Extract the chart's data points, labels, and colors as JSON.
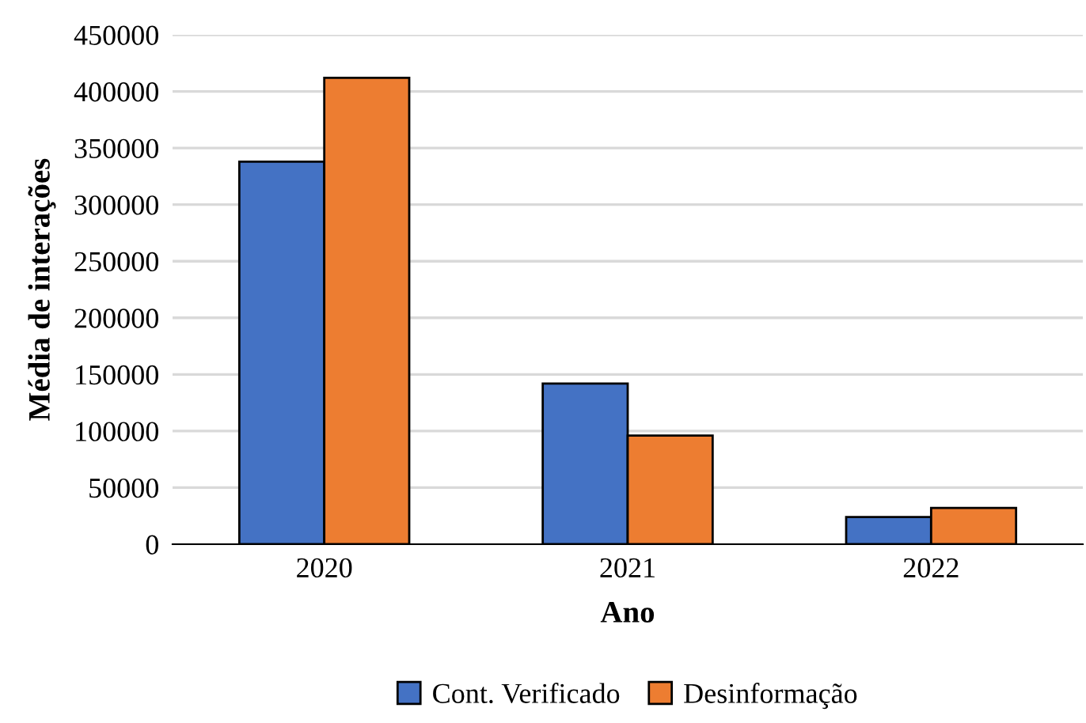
{
  "chart_data": {
    "type": "bar",
    "xlabel": "Ano",
    "ylabel": "Média de interações",
    "categories": [
      "2020",
      "2021",
      "2022"
    ],
    "series": [
      {
        "name": "Cont. Verificado",
        "color": "#4472c4",
        "values": [
          338000,
          142000,
          24000
        ]
      },
      {
        "name": "Desinformação",
        "color": "#ed7d31",
        "values": [
          412000,
          96000,
          32000
        ]
      }
    ],
    "ylim": [
      0,
      450000
    ],
    "yticks": [
      0,
      50000,
      100000,
      150000,
      200000,
      250000,
      300000,
      350000,
      400000,
      450000
    ],
    "grid": "y",
    "legend": "bottom"
  }
}
